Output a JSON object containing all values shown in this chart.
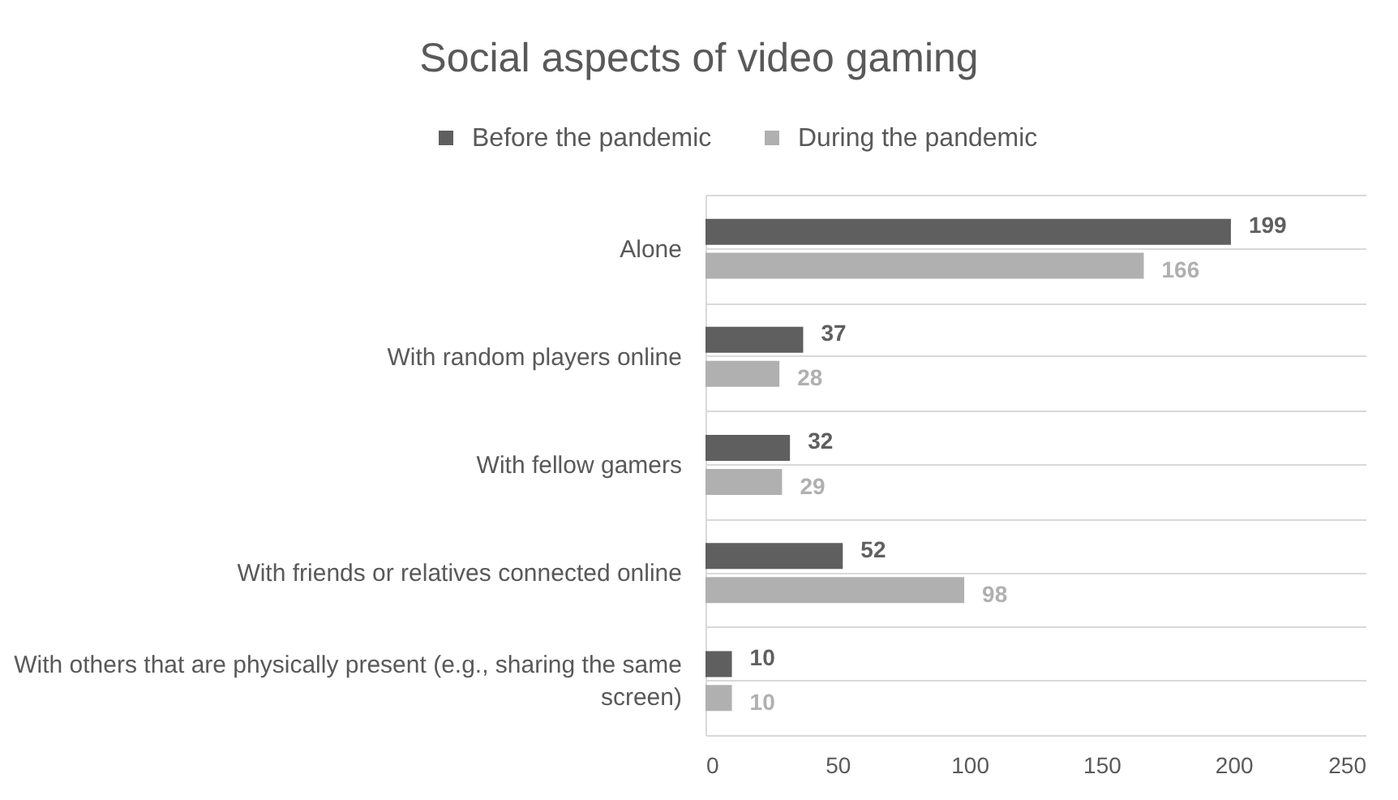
{
  "chart_data": {
    "type": "bar",
    "orientation": "horizontal",
    "title": "Social aspects of video gaming",
    "categories": [
      "Alone",
      "With random players online",
      "With fellow gamers",
      "With friends or relatives connected online",
      "With others that are physically present (e.g., sharing the same screen)"
    ],
    "series": [
      {
        "name": "Before the pandemic",
        "color": "#5f5f5f",
        "values": [
          199,
          37,
          32,
          52,
          10
        ]
      },
      {
        "name": "During the pandemic",
        "color": "#b0b0b0",
        "values": [
          166,
          28,
          29,
          98,
          10
        ]
      }
    ],
    "xlim": [
      0,
      250
    ],
    "xticks": [
      0,
      50,
      100,
      150,
      200,
      250
    ],
    "data_labels": true,
    "legend": "top",
    "grid": "y"
  }
}
